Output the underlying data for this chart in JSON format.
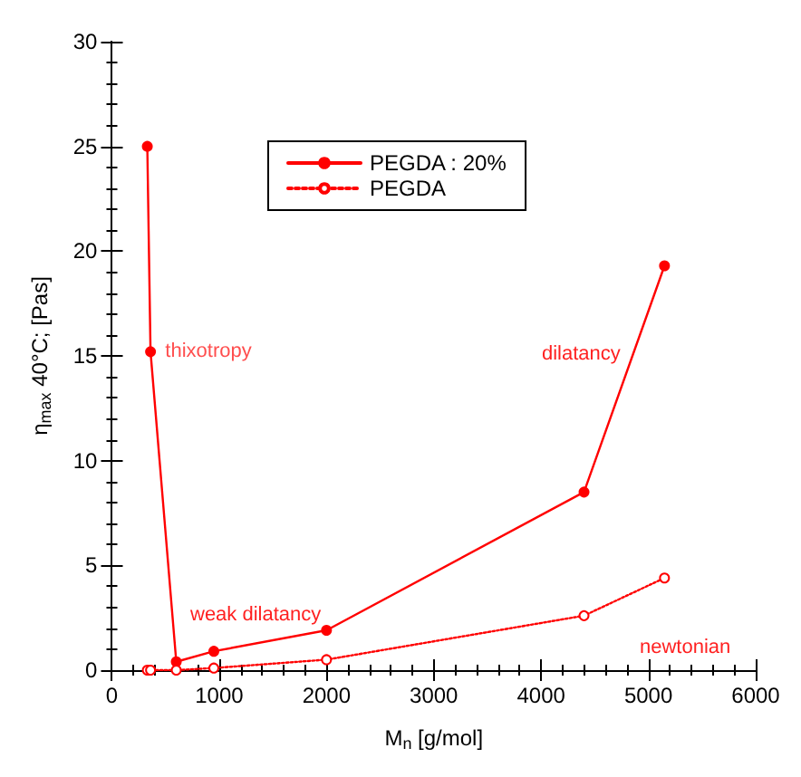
{
  "chart_data": {
    "type": "line",
    "xlabel": "M$_{n}$ [g/mol]",
    "ylabel": "η$_{max}$ 40°C; [Pas]",
    "xlim": [
      0,
      6000
    ],
    "xticks": [
      0,
      1000,
      2000,
      3000,
      4000,
      5000,
      6000
    ],
    "ylim": [
      0,
      30
    ],
    "yticks": [
      0,
      5,
      10,
      15,
      20,
      25,
      30
    ],
    "grid": false,
    "legend": "top",
    "series": [
      {
        "name": "PEGDA : 20%",
        "color": "#ff0000",
        "marker": "circle",
        "line_style": "solid",
        "x": [
          330,
          360,
          600,
          950,
          2000,
          4400,
          5150
        ],
        "values": [
          25,
          15.2,
          0.4,
          0.9,
          1.9,
          8.5,
          19.3
        ]
      },
      {
        "name": "PEGDA",
        "color": "#ff0000",
        "marker": "open_circle",
        "line_style": "dotted",
        "x": [
          330,
          360,
          600,
          950,
          2000,
          4400,
          5150
        ],
        "values": [
          0,
          0,
          0,
          0.1,
          0.5,
          2.6,
          4.4
        ]
      }
    ],
    "annotations": [
      {
        "text": "thixotropy",
        "x": 480,
        "y": 15.2
      },
      "weak dilatancy",
      "dilatancy",
      "newtonian"
    ]
  }
}
